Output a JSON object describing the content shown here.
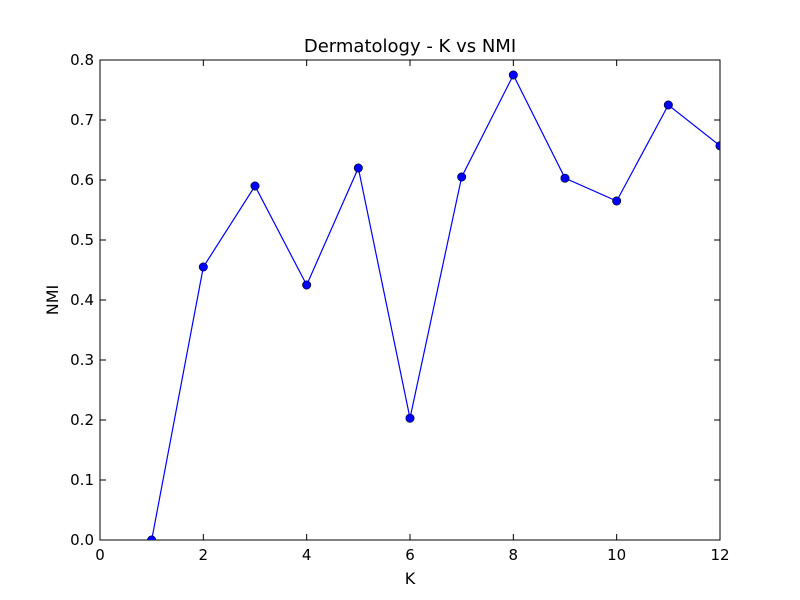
{
  "chart_data": {
    "type": "line",
    "title": "Dermatology - K vs NMI",
    "xlabel": "K",
    "ylabel": "NMI",
    "xlim": [
      0,
      12
    ],
    "ylim": [
      0.0,
      0.8
    ],
    "xticks": [
      "0",
      "2",
      "4",
      "6",
      "8",
      "10",
      "12"
    ],
    "yticks": [
      "0.0",
      "0.1",
      "0.2",
      "0.3",
      "0.4",
      "0.5",
      "0.6",
      "0.7",
      "0.8"
    ],
    "grid": false,
    "legend": "none",
    "colors": {
      "series": "#0000ff",
      "axes": "#000000"
    },
    "x": [
      1,
      2,
      3,
      4,
      5,
      6,
      7,
      8,
      9,
      10,
      11,
      12
    ],
    "series": [
      {
        "values": [
          0.0,
          0.455,
          0.59,
          0.425,
          0.62,
          0.203,
          0.605,
          0.775,
          0.603,
          0.565,
          0.725,
          0.657
        ]
      }
    ]
  }
}
